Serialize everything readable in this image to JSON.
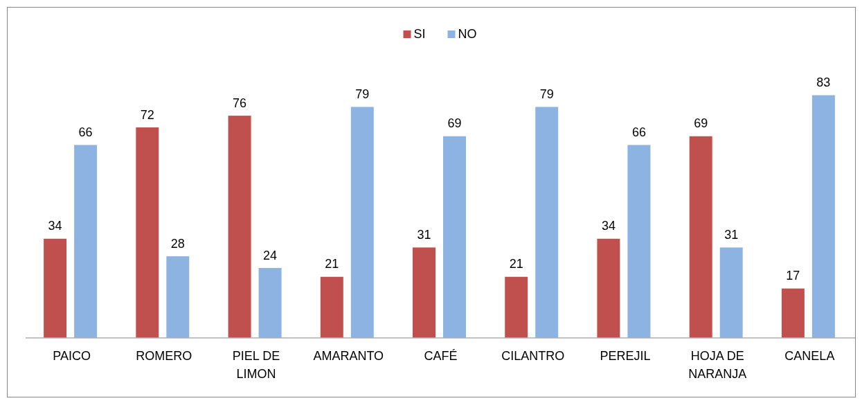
{
  "chart_data": {
    "type": "bar",
    "categories": [
      "PAICO",
      "ROMERO",
      "PIEL DE LIMON",
      "AMARANTO",
      "CAFÉ",
      "CILANTRO",
      "PEREJIL",
      "HOJA DE NARANJA",
      "CANELA"
    ],
    "series": [
      {
        "name": "SI",
        "color": "#c0504d",
        "values": [
          34,
          72,
          76,
          21,
          31,
          21,
          34,
          69,
          17
        ]
      },
      {
        "name": "NO",
        "color": "#8db3e2",
        "values": [
          66,
          28,
          24,
          79,
          69,
          79,
          66,
          31,
          83
        ]
      }
    ],
    "data_labels": true,
    "legend": "top"
  }
}
